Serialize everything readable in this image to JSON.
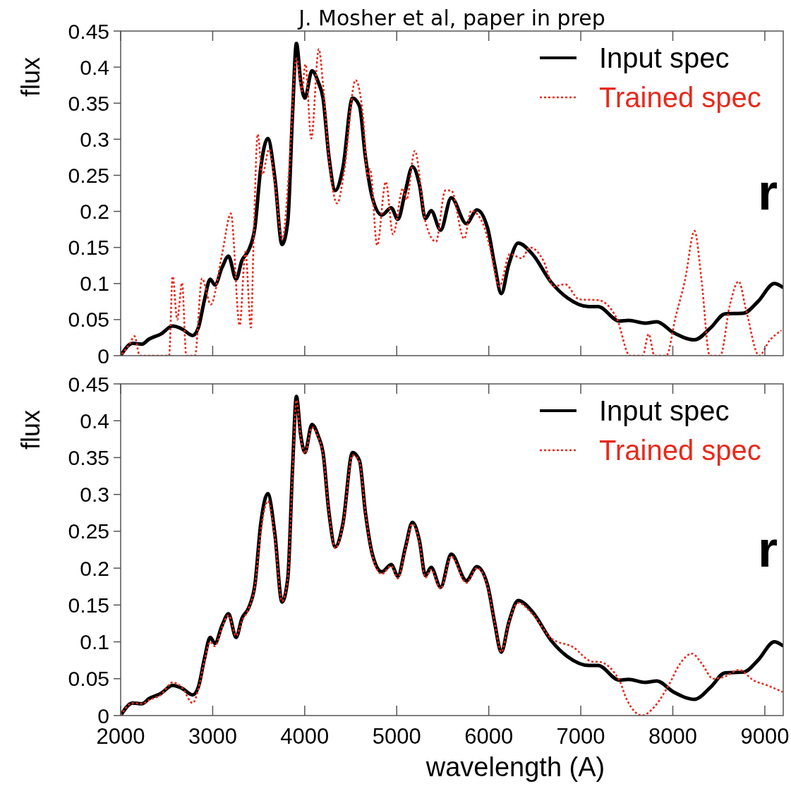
{
  "chart_data": [
    {
      "type": "line",
      "title": "J. Mosher et al, paper in prep",
      "ylabel": "flux",
      "xlim": [
        2000,
        9200
      ],
      "xticks": [
        2000,
        3000,
        4000,
        5000,
        6000,
        7000,
        8000,
        9000
      ],
      "ylim": [
        0,
        0.45
      ],
      "yticks": [
        0,
        0.05,
        0.1,
        0.15,
        0.2,
        0.25,
        0.3,
        0.35,
        0.4,
        0.45
      ],
      "tick_labels": "y",
      "legend": "top right",
      "annotations": [
        "r"
      ],
      "series": [
        {
          "name": "Input spec",
          "color": "#000000",
          "line_style": "solid",
          "x": [
            2000,
            2130,
            2232,
            2309,
            2437,
            2565,
            2667,
            2782,
            2845,
            2910,
            2973,
            3025,
            3101,
            3172,
            3254,
            3318,
            3394,
            3458,
            3523,
            3599,
            3676,
            3753,
            3816,
            3868,
            3910,
            3956,
            4002,
            4079,
            4148,
            4199,
            4263,
            4332,
            4416,
            4519,
            4595,
            4659,
            4735,
            4838,
            4940,
            5012,
            5094,
            5170,
            5247,
            5311,
            5374,
            5477,
            5592,
            5757,
            5872,
            5987,
            6064,
            6136,
            6217,
            6320,
            6473,
            6677,
            6856,
            7086,
            7188,
            7418,
            7520,
            7699,
            7826,
            8006,
            8236,
            8414,
            8567,
            8772,
            8925,
            9104,
            9193
          ],
          "values": [
            0,
            0.017,
            0.016,
            0.023,
            0.03,
            0.041,
            0.037,
            0.028,
            0.039,
            0.077,
            0.106,
            0.098,
            0.122,
            0.138,
            0.106,
            0.132,
            0.147,
            0.177,
            0.261,
            0.301,
            0.246,
            0.154,
            0.186,
            0.336,
            0.433,
            0.381,
            0.357,
            0.395,
            0.379,
            0.357,
            0.276,
            0.229,
            0.261,
            0.357,
            0.346,
            0.276,
            0.219,
            0.195,
            0.205,
            0.189,
            0.228,
            0.262,
            0.237,
            0.19,
            0.201,
            0.174,
            0.219,
            0.183,
            0.202,
            0.177,
            0.126,
            0.086,
            0.126,
            0.156,
            0.141,
            0.102,
            0.08,
            0.068,
            0.068,
            0.048,
            0.049,
            0.045,
            0.047,
            0.032,
            0.022,
            0.039,
            0.058,
            0.059,
            0.075,
            0.1,
            0.095
          ]
        },
        {
          "name": "Trained spec",
          "color": "#e8291c",
          "line_style": "dotted",
          "x": [
            2015,
            2092,
            2151,
            2207,
            2526,
            2565,
            2615,
            2667,
            2713,
            2807,
            2884,
            2979,
            3101,
            3198,
            3293,
            3356,
            3415,
            3446,
            3489,
            3540,
            3612,
            3676,
            3757,
            3829,
            3910,
            3969,
            4008,
            4071,
            4153,
            4199,
            4263,
            4353,
            4429,
            4552,
            4634,
            4685,
            4710,
            4787,
            4881,
            4960,
            5068,
            5106,
            5196,
            5311,
            5426,
            5528,
            5592,
            5732,
            5809,
            5937,
            6013,
            6115,
            6230,
            6358,
            6447,
            6600,
            6703,
            6830,
            6983,
            7188,
            7393,
            7533,
            7673,
            7737,
            7801,
            7929,
            8031,
            8133,
            8236,
            8312,
            8401,
            8516,
            8618,
            8715,
            8797,
            8937,
            9052,
            9180
          ],
          "values": [
            0.002,
            0.015,
            0.027,
            0,
            0,
            0.11,
            0.05,
            0.101,
            0,
            0,
            0.107,
            0.071,
            0.14,
            0.197,
            0.042,
            0.144,
            0.039,
            0.166,
            0.307,
            0.251,
            0.286,
            0.238,
            0.161,
            0.256,
            0.412,
            0.367,
            0.404,
            0.301,
            0.425,
            0.376,
            0.274,
            0.211,
            0.256,
            0.382,
            0.331,
            0.247,
            0.259,
            0.153,
            0.241,
            0.168,
            0.232,
            0.216,
            0.284,
            0.186,
            0.158,
            0.229,
            0.229,
            0.162,
            0.201,
            0.183,
            0.15,
            0.096,
            0.141,
            0.135,
            0.15,
            0.13,
            0.096,
            0.099,
            0.078,
            0.077,
            0.051,
            0,
            0,
            0.03,
            0,
            0,
            0.054,
            0.105,
            0.173,
            0.105,
            0,
            0,
            0.069,
            0.103,
            0.063,
            0,
            0.021,
            0.035
          ]
        }
      ]
    },
    {
      "type": "line",
      "ylabel": "flux",
      "xlabel": "wavelength (A)",
      "xlim": [
        2000,
        9200
      ],
      "xticks": [
        2000,
        3000,
        4000,
        5000,
        6000,
        7000,
        8000,
        9000
      ],
      "ylim": [
        0,
        0.45
      ],
      "yticks": [
        0,
        0.05,
        0.1,
        0.15,
        0.2,
        0.25,
        0.3,
        0.35,
        0.4,
        0.45
      ],
      "legend": "top right",
      "annotations": [
        "r"
      ],
      "series": [
        {
          "name": "Input spec",
          "color": "#000000",
          "line_style": "solid",
          "x": [
            2000,
            2130,
            2232,
            2309,
            2437,
            2565,
            2667,
            2782,
            2845,
            2910,
            2973,
            3025,
            3101,
            3172,
            3254,
            3318,
            3394,
            3458,
            3523,
            3599,
            3676,
            3753,
            3816,
            3868,
            3910,
            3956,
            4002,
            4079,
            4148,
            4199,
            4263,
            4332,
            4416,
            4519,
            4595,
            4659,
            4735,
            4838,
            4940,
            5012,
            5094,
            5170,
            5247,
            5311,
            5374,
            5477,
            5592,
            5757,
            5872,
            5987,
            6064,
            6136,
            6217,
            6320,
            6473,
            6677,
            6856,
            7086,
            7188,
            7418,
            7520,
            7699,
            7826,
            8006,
            8236,
            8414,
            8567,
            8772,
            8925,
            9104,
            9193
          ],
          "values": [
            0,
            0.017,
            0.016,
            0.023,
            0.03,
            0.041,
            0.037,
            0.028,
            0.039,
            0.077,
            0.106,
            0.098,
            0.122,
            0.138,
            0.106,
            0.132,
            0.147,
            0.177,
            0.261,
            0.301,
            0.246,
            0.154,
            0.186,
            0.336,
            0.433,
            0.381,
            0.357,
            0.395,
            0.379,
            0.357,
            0.276,
            0.229,
            0.261,
            0.357,
            0.346,
            0.276,
            0.219,
            0.195,
            0.205,
            0.189,
            0.228,
            0.262,
            0.237,
            0.19,
            0.201,
            0.174,
            0.219,
            0.183,
            0.202,
            0.177,
            0.126,
            0.086,
            0.126,
            0.156,
            0.141,
            0.102,
            0.08,
            0.068,
            0.068,
            0.048,
            0.049,
            0.045,
            0.047,
            0.032,
            0.022,
            0.039,
            0.058,
            0.059,
            0.075,
            0.1,
            0.095
          ]
        },
        {
          "name": "Trained spec",
          "color": "#e8291c",
          "line_style": "dotted",
          "x": [
            2000,
            2130,
            2232,
            2309,
            2437,
            2565,
            2667,
            2782,
            2845,
            2910,
            2973,
            3025,
            3101,
            3172,
            3254,
            3318,
            3394,
            3458,
            3523,
            3599,
            3676,
            3753,
            3816,
            3868,
            3910,
            3956,
            4002,
            4079,
            4148,
            4199,
            4263,
            4332,
            4416,
            4519,
            4595,
            4659,
            4735,
            4838,
            4940,
            5012,
            5094,
            5170,
            5247,
            5311,
            5374,
            5477,
            5592,
            5757,
            5872,
            5987,
            6064,
            6136,
            6217,
            6320,
            6473,
            6677,
            6914,
            7134,
            7188,
            7418,
            7495,
            7597,
            7661,
            7801,
            7954,
            8082,
            8209,
            8312,
            8439,
            8567,
            8721,
            8874,
            9027,
            9193
          ],
          "values": [
            0,
            0.017,
            0.016,
            0.021,
            0.028,
            0.045,
            0.038,
            0.017,
            0.036,
            0.074,
            0.1,
            0.094,
            0.119,
            0.136,
            0.108,
            0.128,
            0.146,
            0.175,
            0.25,
            0.291,
            0.24,
            0.155,
            0.186,
            0.33,
            0.428,
            0.378,
            0.356,
            0.391,
            0.377,
            0.355,
            0.276,
            0.227,
            0.259,
            0.353,
            0.344,
            0.276,
            0.217,
            0.192,
            0.203,
            0.186,
            0.226,
            0.26,
            0.235,
            0.187,
            0.198,
            0.172,
            0.216,
            0.18,
            0.2,
            0.175,
            0.126,
            0.086,
            0.126,
            0.153,
            0.138,
            0.105,
            0.093,
            0.073,
            0.073,
            0.048,
            0.023,
            0.004,
            0,
            0.012,
            0.041,
            0.071,
            0.084,
            0.071,
            0.05,
            0.053,
            0.062,
            0.048,
            0.041,
            0.032
          ]
        }
      ]
    }
  ]
}
